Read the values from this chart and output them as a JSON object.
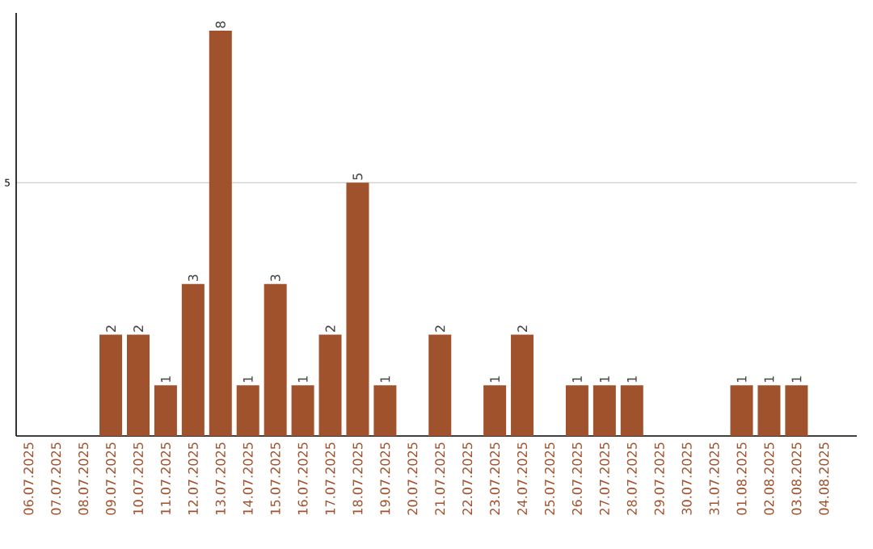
{
  "chart_data": {
    "type": "bar",
    "categories": [
      "06.07.2025",
      "07.07.2025",
      "08.07.2025",
      "09.07.2025",
      "10.07.2025",
      "11.07.2025",
      "12.07.2025",
      "13.07.2025",
      "14.07.2025",
      "15.07.2025",
      "16.07.2025",
      "17.07.2025",
      "18.07.2025",
      "19.07.2025",
      "20.07.2025",
      "21.07.2025",
      "22.07.2025",
      "23.07.2025",
      "24.07.2025",
      "25.07.2025",
      "26.07.2025",
      "27.07.2025",
      "28.07.2025",
      "29.07.2025",
      "30.07.2025",
      "31.07.2025",
      "01.08.2025",
      "02.08.2025",
      "03.08.2025",
      "04.08.2025"
    ],
    "values": [
      0,
      0,
      0,
      2,
      2,
      1,
      3,
      8,
      1,
      3,
      1,
      2,
      5,
      1,
      0,
      2,
      0,
      1,
      2,
      0,
      1,
      1,
      1,
      0,
      0,
      0,
      1,
      1,
      1,
      0
    ],
    "value_labels": [
      null,
      null,
      null,
      "2",
      "2",
      "1",
      "3",
      "8",
      "1",
      "3",
      "1",
      "2",
      "5",
      "1",
      null,
      "2",
      null,
      "1",
      "2",
      null,
      "1",
      "1",
      "1",
      null,
      null,
      null,
      "1",
      "1",
      "1",
      null
    ],
    "color": "#a0522d",
    "ylim": [
      0,
      8.35
    ],
    "yticks": [
      5
    ],
    "grid": "y"
  }
}
